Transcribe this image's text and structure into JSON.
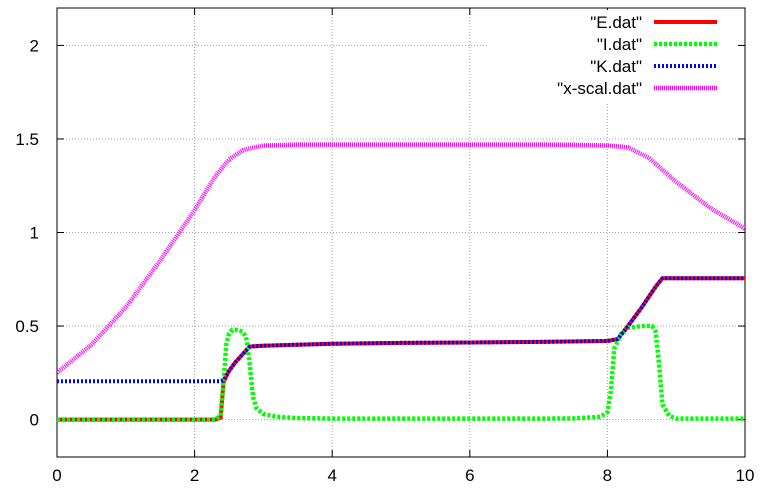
{
  "chart_data": {
    "type": "line",
    "title": "",
    "xlabel": "",
    "ylabel": "",
    "xlim": [
      0,
      10
    ],
    "ylim": [
      -0.2,
      2.2
    ],
    "xticks": [
      "0",
      "2",
      "4",
      "6",
      "8",
      "10"
    ],
    "yticks": [
      "0",
      "0.5",
      "1",
      "1.5",
      "2"
    ],
    "grid": true,
    "legend_position": "top-right",
    "series": [
      {
        "name": "\"E.dat\"",
        "color": "#ff0000",
        "x": [
          0,
          2.3,
          2.38,
          2.42,
          2.5,
          2.6,
          2.7,
          2.8,
          3.0,
          4.0,
          5.0,
          6.0,
          7.0,
          8.0,
          8.15,
          8.3,
          8.5,
          8.7,
          8.8,
          9.0,
          10.0
        ],
        "y": [
          0,
          0,
          0.01,
          0.2,
          0.26,
          0.31,
          0.35,
          0.39,
          0.395,
          0.405,
          0.41,
          0.412,
          0.415,
          0.42,
          0.43,
          0.5,
          0.6,
          0.71,
          0.755,
          0.755,
          0.755
        ]
      },
      {
        "name": "\"I.dat\"",
        "color": "#00ff00",
        "x": [
          0,
          2.3,
          2.38,
          2.42,
          2.46,
          2.5,
          2.55,
          2.6,
          2.7,
          2.75,
          2.8,
          2.85,
          2.9,
          3.0,
          3.2,
          3.5,
          4.0,
          5.0,
          6.0,
          7.0,
          7.5,
          7.9,
          8.0,
          8.05,
          8.1,
          8.2,
          8.3,
          8.5,
          8.65,
          8.7,
          8.75,
          8.8,
          8.9,
          9.0,
          10.0
        ],
        "y": [
          0,
          0,
          0.02,
          0.2,
          0.4,
          0.46,
          0.48,
          0.48,
          0.47,
          0.44,
          0.3,
          0.12,
          0.06,
          0.03,
          0.015,
          0.008,
          0.005,
          0.005,
          0.005,
          0.005,
          0.006,
          0.015,
          0.04,
          0.15,
          0.38,
          0.46,
          0.49,
          0.5,
          0.5,
          0.47,
          0.3,
          0.08,
          0.02,
          0.005,
          0.005
        ]
      },
      {
        "name": "\"K.dat\"",
        "color": "#0000ff",
        "x": [
          0,
          2.3,
          2.38,
          2.42,
          2.5,
          2.6,
          2.7,
          2.8,
          3.0,
          4.0,
          5.0,
          6.0,
          7.0,
          8.0,
          8.15,
          8.3,
          8.5,
          8.7,
          8.8,
          9.0,
          10.0
        ],
        "y": [
          0.205,
          0.205,
          0.205,
          0.21,
          0.26,
          0.31,
          0.35,
          0.39,
          0.395,
          0.405,
          0.41,
          0.412,
          0.415,
          0.42,
          0.43,
          0.5,
          0.6,
          0.71,
          0.755,
          0.755,
          0.755
        ]
      },
      {
        "name": "\"x-scal.dat\"",
        "color": "#ff00ff",
        "x": [
          0,
          0.5,
          1.0,
          1.5,
          2.0,
          2.3,
          2.5,
          2.7,
          3.0,
          3.5,
          4.0,
          5.0,
          6.0,
          7.0,
          7.5,
          8.0,
          8.3,
          8.6,
          9.0,
          9.5,
          10.0
        ],
        "y": [
          0.25,
          0.4,
          0.6,
          0.85,
          1.12,
          1.3,
          1.39,
          1.44,
          1.465,
          1.47,
          1.47,
          1.47,
          1.47,
          1.47,
          1.468,
          1.465,
          1.455,
          1.4,
          1.27,
          1.13,
          1.02
        ]
      }
    ]
  }
}
